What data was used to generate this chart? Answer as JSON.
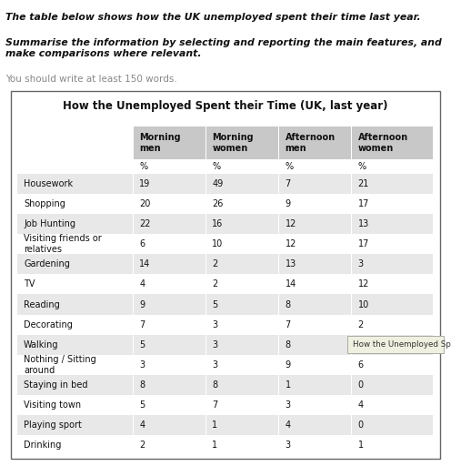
{
  "title": "How the Unemployed Spent their Time (UK, last year)",
  "prompt_line1": "The table below shows how the UK unemployed spent their time last year.",
  "prompt_line2": "Summarise the information by selecting and reporting the main features, and\nmake comparisons where relevant.",
  "prompt_line3": "You should write at least 150 words.",
  "col_headers": [
    "",
    "Morning\nmen",
    "Morning\nwomen",
    "Afternoon\nmen",
    "Afternoon\nwomen"
  ],
  "col_subheaders": [
    "",
    "%",
    "%",
    "%",
    "%"
  ],
  "rows": [
    [
      "Housework",
      "19",
      "49",
      "7",
      "21"
    ],
    [
      "Shopping",
      "20",
      "26",
      "9",
      "17"
    ],
    [
      "Job Hunting",
      "22",
      "16",
      "12",
      "13"
    ],
    [
      "Visiting friends or\nrelatives",
      "6",
      "10",
      "12",
      "17"
    ],
    [
      "Gardening",
      "14",
      "2",
      "13",
      "3"
    ],
    [
      "TV",
      "4",
      "2",
      "14",
      "12"
    ],
    [
      "Reading",
      "9",
      "5",
      "8",
      "10"
    ],
    [
      "Decorating",
      "7",
      "3",
      "7",
      "2"
    ],
    [
      "Walking",
      "5",
      "3",
      "8",
      ""
    ],
    [
      "Nothing / Sitting\naround",
      "3",
      "3",
      "9",
      "6"
    ],
    [
      "Staying in bed",
      "8",
      "8",
      "1",
      "0"
    ],
    [
      "Visiting town",
      "5",
      "7",
      "3",
      "4"
    ],
    [
      "Playing sport",
      "4",
      "1",
      "4",
      "0"
    ],
    [
      "Drinking",
      "2",
      "1",
      "3",
      "1"
    ]
  ],
  "header_bg": "#c8c8c8",
  "row_alt_bg": "#e8e8e8",
  "row_white_bg": "#ffffff",
  "border_color": "#666666",
  "tooltip_text": "How the Unemployed Spend their",
  "tooltip_bg": "#f0f0e0",
  "tooltip_border": "#aaaaaa"
}
